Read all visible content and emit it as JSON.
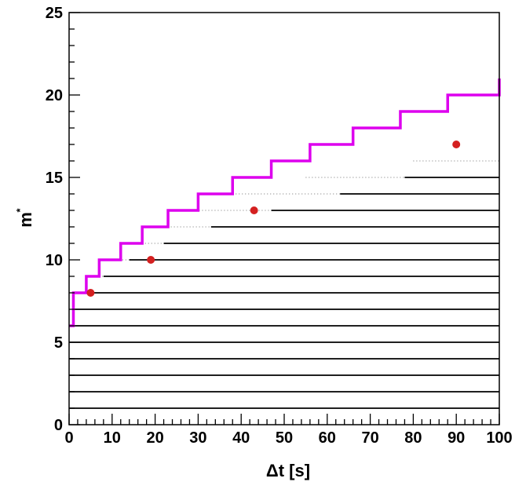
{
  "chart_data": {
    "type": "scatter",
    "xlabel": "Δt [s]",
    "ylabel": "m",
    "ylabel_superscript": "*",
    "xlim": [
      0,
      100
    ],
    "ylim": [
      0,
      25
    ],
    "x_ticks": [
      0,
      10,
      20,
      30,
      40,
      50,
      60,
      70,
      80,
      90,
      100
    ],
    "y_ticks": [
      0,
      5,
      10,
      15,
      20,
      25
    ],
    "grid": false,
    "colors": {
      "step": "#dd00ee",
      "points": "#d42020",
      "dense": "#000000"
    },
    "step_series": {
      "x": [
        0,
        1,
        4,
        7,
        12,
        17,
        23,
        30,
        38,
        47,
        56,
        66,
        77,
        88,
        100
      ],
      "y": [
        6,
        8,
        9,
        10,
        11,
        12,
        13,
        14,
        15,
        16,
        17,
        18,
        19,
        20,
        21
      ]
    },
    "red_points": {
      "x": [
        5,
        19,
        43,
        90
      ],
      "y": [
        8,
        10,
        13,
        17
      ]
    },
    "dense_levels": [
      {
        "y": 1,
        "x_start": 0
      },
      {
        "y": 2,
        "x_start": 0
      },
      {
        "y": 3,
        "x_start": 0
      },
      {
        "y": 4,
        "x_start": 0
      },
      {
        "y": 5,
        "x_start": 0
      },
      {
        "y": 6,
        "x_start": 0
      },
      {
        "y": 7,
        "x_start": 1
      },
      {
        "y": 8,
        "x_start": 4
      },
      {
        "y": 9,
        "x_start": 8
      },
      {
        "y": 10,
        "x_start": 14
      },
      {
        "y": 11,
        "x_start": 22
      },
      {
        "y": 12,
        "x_start": 33
      },
      {
        "y": 13,
        "x_start": 47
      },
      {
        "y": 14,
        "x_start": 63
      },
      {
        "y": 15,
        "x_start": 78
      }
    ],
    "sparse_levels": [
      {
        "y": 8,
        "x_start": 2,
        "x_end": 4
      },
      {
        "y": 9,
        "x_start": 4,
        "x_end": 8
      },
      {
        "y": 10,
        "x_start": 8,
        "x_end": 14
      },
      {
        "y": 11,
        "x_start": 14,
        "x_end": 22
      },
      {
        "y": 12,
        "x_start": 20,
        "x_end": 33
      },
      {
        "y": 13,
        "x_start": 28,
        "x_end": 47
      },
      {
        "y": 14,
        "x_start": 38,
        "x_end": 63
      },
      {
        "y": 15,
        "x_start": 55,
        "x_end": 78
      },
      {
        "y": 16,
        "x_start": 80,
        "x_end": 100
      }
    ]
  }
}
